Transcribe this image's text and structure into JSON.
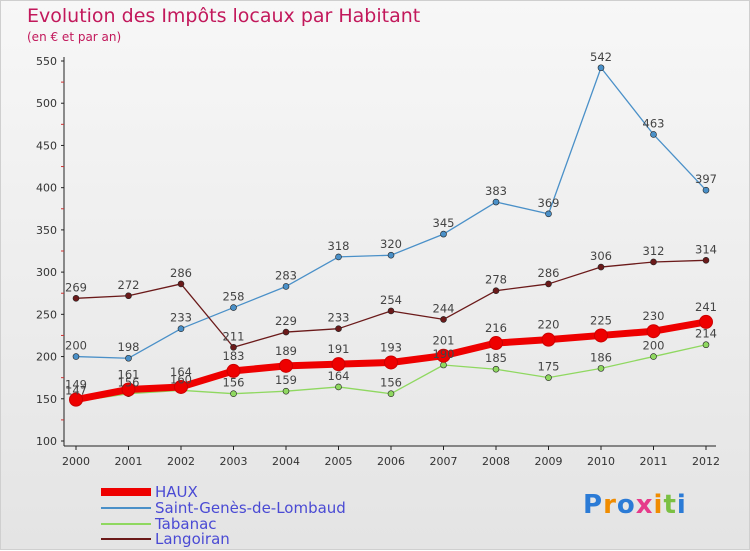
{
  "title": "Evolution des Impôts locaux par Habitant",
  "subtitle": "(en € et par an)",
  "brand": "Proxiti",
  "chart_data": {
    "type": "line",
    "x": [
      "2000",
      "2001",
      "2002",
      "2003",
      "2004",
      "2005",
      "2006",
      "2007",
      "2008",
      "2009",
      "2010",
      "2011",
      "2012"
    ],
    "ylim": [
      100,
      550
    ],
    "yticks": [
      100,
      150,
      200,
      250,
      300,
      350,
      400,
      450,
      500,
      550
    ],
    "grid": false,
    "legend_position": "bottom-left",
    "series": [
      {
        "name": "HAUX",
        "color": "#ee0000",
        "values": [
          149,
          161,
          164,
          183,
          189,
          191,
          193,
          201,
          216,
          220,
          225,
          230,
          241
        ]
      },
      {
        "name": "Saint-Genès-de-Lombaud",
        "color": "#4a90c8",
        "values": [
          200,
          198,
          233,
          258,
          283,
          318,
          320,
          345,
          383,
          369,
          542,
          463,
          397
        ]
      },
      {
        "name": "Tabanac",
        "color": "#8fd860",
        "values": [
          147,
          156,
          160,
          156,
          159,
          164,
          156,
          190,
          185,
          175,
          186,
          200,
          214
        ]
      },
      {
        "name": "Langoiran",
        "color": "#6b1a1a",
        "values": [
          269,
          272,
          286,
          211,
          229,
          233,
          254,
          244,
          278,
          286,
          306,
          312,
          314
        ]
      }
    ]
  }
}
